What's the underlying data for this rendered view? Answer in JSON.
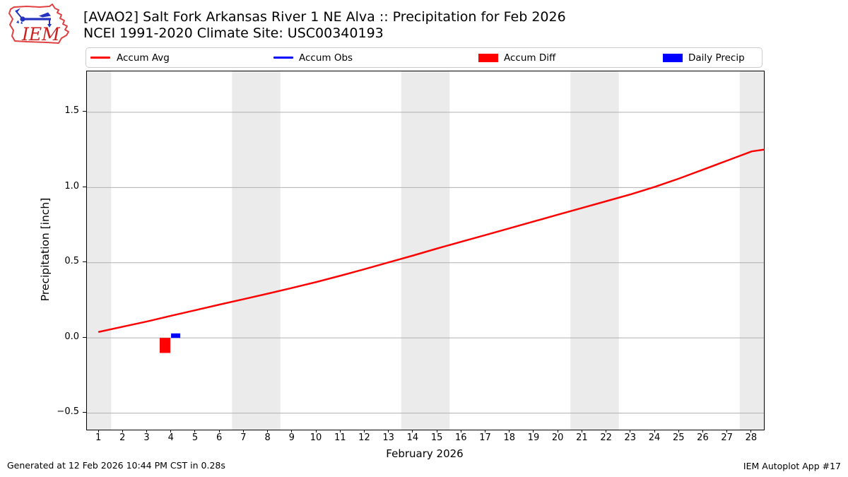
{
  "header": {
    "title_line1": "[AVAO2] Salt Fork Arkansas River 1 NE Alva :: Precipitation for Feb 2026",
    "title_line2": "NCEI 1991-2020 Climate Site: USC00340193",
    "logo_text": "IEM"
  },
  "colors": {
    "accum_avg": "#ff0000",
    "accum_obs": "#0000ff",
    "accum_diff": "#ff0000",
    "daily_precip": "#0000ff",
    "weekend_band": "#ebebeb",
    "gridline": "#b0b0b0",
    "axis": "#000000"
  },
  "legend": {
    "items": [
      {
        "label": "Accum Avg",
        "type": "line",
        "color": "#ff0000",
        "sample_offset": 6,
        "label_offset": 43
      },
      {
        "label": "Accum Obs",
        "type": "line",
        "color": "#0000ff",
        "sample_offset": 265,
        "label_offset": 301
      },
      {
        "label": "Accum Diff",
        "type": "patch",
        "color": "#ff0000",
        "sample_offset": 555,
        "label_offset": 591
      },
      {
        "label": "Daily Precip",
        "type": "patch",
        "color": "#0000ff",
        "sample_offset": 816,
        "label_offset": 852
      }
    ]
  },
  "chart_data": {
    "type": "line+bar",
    "xlabel": "February 2026",
    "ylabel": "Precipitation [inch]",
    "xlim": [
      0.5,
      28.5
    ],
    "ylim": [
      -0.61,
      1.772
    ],
    "grid": "horizontal",
    "x_ticks": [
      1,
      2,
      3,
      4,
      5,
      6,
      7,
      8,
      9,
      10,
      11,
      12,
      13,
      14,
      15,
      16,
      17,
      18,
      19,
      20,
      21,
      22,
      23,
      24,
      25,
      26,
      27,
      28
    ],
    "y_ticks": [
      {
        "v": -0.5,
        "label": "−0.5"
      },
      {
        "v": 0.0,
        "label": "0.0"
      },
      {
        "v": 0.5,
        "label": "0.5"
      },
      {
        "v": 1.0,
        "label": "1.0"
      },
      {
        "v": 1.5,
        "label": "1.5"
      }
    ],
    "weekend_bands": [
      [
        0.5,
        1.5
      ],
      [
        6.5,
        8.5
      ],
      [
        13.5,
        15.5
      ],
      [
        20.5,
        22.5
      ],
      [
        27.5,
        28.5
      ]
    ],
    "series": [
      {
        "name": "Accum Avg",
        "kind": "line",
        "color": "#ff0000",
        "x": [
          1,
          2,
          3,
          4,
          5,
          6,
          7,
          8,
          9,
          10,
          11,
          12,
          13,
          14,
          15,
          16,
          17,
          18,
          19,
          20,
          21,
          22,
          23,
          24,
          25,
          26,
          27,
          28,
          28.5
        ],
        "y": [
          0.04,
          0.075,
          0.11,
          0.148,
          0.185,
          0.222,
          0.258,
          0.295,
          0.333,
          0.372,
          0.414,
          0.458,
          0.503,
          0.548,
          0.595,
          0.64,
          0.685,
          0.73,
          0.775,
          0.82,
          0.865,
          0.91,
          0.955,
          1.005,
          1.06,
          1.12,
          1.18,
          1.24,
          1.252
        ]
      },
      {
        "name": "Accum Obs",
        "kind": "line",
        "color": "#0000ff",
        "x": [],
        "y": []
      },
      {
        "name": "Accum Diff",
        "kind": "bar",
        "color": "#ff0000",
        "bar_dx": -0.49,
        "bar_width": 0.44,
        "points": [
          {
            "day": 4,
            "value": -0.1
          }
        ]
      },
      {
        "name": "Daily Precip",
        "kind": "bar",
        "color": "#0000ff",
        "bar_dx": -0.02,
        "bar_width": 0.38,
        "points": [
          {
            "day": 4,
            "value": 0.03
          }
        ]
      }
    ]
  },
  "footer": {
    "left": "Generated at 12 Feb 2026 10:44 PM CST in 0.28s",
    "right": "IEM Autoplot App #17"
  }
}
